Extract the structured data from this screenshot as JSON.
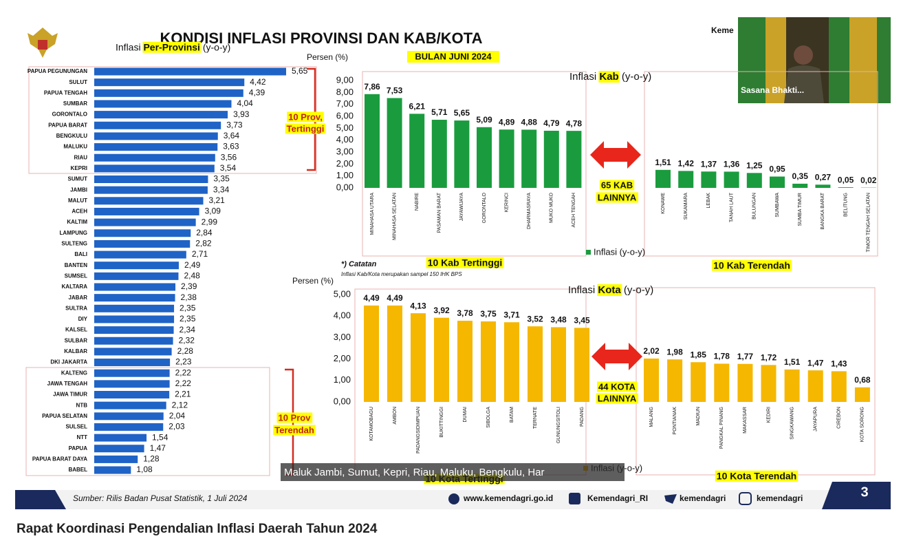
{
  "page": {
    "title": "KONDISI INFLASI PROVINSI DAN KAB/KOTA",
    "subtitle": "BULAN JUNI 2024",
    "corner_text": "Keme",
    "webcam_name": "Sasana Bhakti...",
    "note_title": "*) Catatan",
    "note_text": "Inflasi Kab/Kota merupakan sampel 150 IHK BPS",
    "source": "Sumber: Rilis Badan Pusat Statistik,  1 Juli 2024",
    "website": "www.kemendagri.go.id",
    "facebook": "Kemendagri_RI",
    "twitter": "kemendagri",
    "instagram": "kemendagri",
    "slide_number": "3",
    "caption": "Maluk Jambi, Sumut, Kepri, Riau, Maluku, Bengkulu, Har",
    "meeting_title": "Rapat Koordinasi Pengendalian Inflasi Daerah Tahun 2024"
  },
  "chart_data": [
    {
      "type": "hbar",
      "title_parts": [
        "Inflasi ",
        "Per-Provinsi",
        " (y-o-y)"
      ],
      "categories": [
        "PAPUA PEGUNUNGAN",
        "SULUT",
        "PAPUA TENGAH",
        "SUMBAR",
        "GORONTALO",
        "PAPUA BARAT",
        "BENGKULU",
        "MALUKU",
        "RIAU",
        "KEPRI",
        "SUMUT",
        "JAMBI",
        "MALUT",
        "ACEH",
        "KALTIM",
        "LAMPUNG",
        "SULTENG",
        "BALI",
        "BANTEN",
        "SUMSEL",
        "KALTARA",
        "JABAR",
        "SULTRA",
        "DIY",
        "KALSEL",
        "SULBAR",
        "KALBAR",
        "DKI JAKARTA",
        "KALTENG",
        "JAWA TENGAH",
        "JAWA TIMUR",
        "NTB",
        "PAPUA SELATAN",
        "SULSEL",
        "NTT",
        "PAPUA",
        "PAPUA BARAT DAYA",
        "BABEL"
      ],
      "values": [
        5.65,
        4.42,
        4.39,
        4.04,
        3.93,
        3.73,
        3.64,
        3.63,
        3.56,
        3.54,
        3.35,
        3.34,
        3.21,
        3.09,
        2.99,
        2.84,
        2.82,
        2.71,
        2.49,
        2.48,
        2.39,
        2.38,
        2.35,
        2.35,
        2.34,
        2.32,
        2.28,
        2.23,
        2.22,
        2.22,
        2.21,
        2.12,
        2.04,
        2.03,
        1.54,
        1.47,
        1.28,
        1.08
      ],
      "value_labels": [
        "5,65",
        "4,42",
        "4,39",
        "4,04",
        "3,93",
        "3,73",
        "3,64",
        "3,63",
        "3,56",
        "3,54",
        "3,35",
        "3,34",
        "3,21",
        "3,09",
        "2,99",
        "2,84",
        "2,82",
        "2,71",
        "2,49",
        "2,48",
        "2,39",
        "2,38",
        "2,35",
        "2,35",
        "2,34",
        "2,32",
        "2,28",
        "2,23",
        "2,22",
        "2,22",
        "2,21",
        "2,12",
        "2,04",
        "2,03",
        "1,54",
        "1,47",
        "1,28",
        "1,08"
      ],
      "color": "#1f63c6",
      "annotations": [
        [
          "10 Prov,",
          "Tertinggi"
        ],
        [
          "10 Prov",
          "Terendah"
        ]
      ]
    },
    {
      "type": "bar",
      "title_parts": [
        "Inflasi ",
        "Kab",
        " (y-o-y)"
      ],
      "y_label": "Persen (%)",
      "categories": [
        "MINAHASA UTARA",
        "MINAHASA SELATAN",
        "NABIRE",
        "PASAMAN BARAT",
        "JAYAWIJAYA",
        "GORONTALO",
        "KERINCI",
        "DHARMASRAYA",
        "MUKO MUKO",
        "ACEH TENGAH",
        "KONAWE",
        "SUKAMARA",
        "LEBAK",
        "TANAH LAUT",
        "BULUNGAN",
        "SUMBAWA",
        "SUMBA TIMUR",
        "BANGKA BARAT",
        "BELITUNG",
        "TIMOR TENGAH SELATAN"
      ],
      "series": [
        {
          "name": "Inflasi (y-o-y)",
          "color": "#1a9c3e",
          "values": [
            7.86,
            7.53,
            6.21,
            5.71,
            5.65,
            5.09,
            4.89,
            4.88,
            4.79,
            4.78,
            1.51,
            1.42,
            1.37,
            1.36,
            1.25,
            0.95,
            0.35,
            0.27,
            0.05,
            0.02
          ],
          "value_labels": [
            "7,86",
            "7,53",
            "6,21",
            "5,71",
            "5,65",
            "5,09",
            "4,89",
            "4,88",
            "4,79",
            "4,78",
            "1,51",
            "1,42",
            "1,37",
            "1,36",
            "1,25",
            "0,95",
            "0,35",
            "0,27",
            "0,05",
            "0,02"
          ]
        }
      ],
      "ylim": [
        0,
        9
      ],
      "yticks": [
        {
          "value": 0,
          "label": "0,00"
        },
        {
          "value": 1,
          "label": "1,00"
        },
        {
          "value": 2,
          "label": "2,00"
        },
        {
          "value": 3,
          "label": "3,00"
        },
        {
          "value": 4,
          "label": "4,00"
        },
        {
          "value": 5,
          "label": "5,00"
        },
        {
          "value": 6,
          "label": "6,00"
        },
        {
          "value": 7,
          "label": "7,00"
        },
        {
          "value": 8,
          "label": "8,00"
        },
        {
          "value": 9,
          "label": "9,00"
        }
      ],
      "group_labels": [
        "10 Kab Tertinggi",
        "10 Kab Terendah"
      ],
      "middle_label": [
        "65 KAB",
        "LAINNYA"
      ]
    },
    {
      "type": "bar",
      "title_parts": [
        "Inflasi ",
        "Kota",
        " (y-o-y)"
      ],
      "y_label": "Persen (%)",
      "categories": [
        "KOTAMOBAGU",
        "AMBON",
        "PADANGSIDIMPUAN",
        "BUKITTINGGI",
        "DUMAI",
        "SIBOLGA",
        "BATAM",
        "TERNATE",
        "GUNUNGSITOLI",
        "PADANG",
        "MALANG",
        "PONTIANAK",
        "MADIUN",
        "PANGKAL PINANG",
        "MAKASSAR",
        "KEDIRI",
        "SINGKAWANG",
        "JAYAPURA",
        "CIREBON",
        "KOTA SORONG"
      ],
      "series": [
        {
          "name": "Inflasi (y-o-y)",
          "color": "#f5b700",
          "values": [
            4.49,
            4.49,
            4.13,
            3.92,
            3.78,
            3.75,
            3.71,
            3.52,
            3.48,
            3.45,
            2.02,
            1.98,
            1.85,
            1.78,
            1.77,
            1.72,
            1.51,
            1.47,
            1.43,
            0.68
          ],
          "value_labels": [
            "4,49",
            "4,49",
            "4,13",
            "3,92",
            "3,78",
            "3,75",
            "3,71",
            "3,52",
            "3,48",
            "3,45",
            "2,02",
            "1,98",
            "1,85",
            "1,78",
            "1,77",
            "1,72",
            "1,51",
            "1,47",
            "1,43",
            "0,68"
          ]
        }
      ],
      "ylim": [
        0,
        5
      ],
      "yticks": [
        {
          "value": 0,
          "label": "0,00"
        },
        {
          "value": 1,
          "label": "1,00"
        },
        {
          "value": 2,
          "label": "2,00"
        },
        {
          "value": 3,
          "label": "3,00"
        },
        {
          "value": 4,
          "label": "4,00"
        },
        {
          "value": 5,
          "label": "5,00"
        }
      ],
      "group_labels": [
        "10 Kota Tertinggi",
        "10 Kota Terendah"
      ],
      "middle_label": [
        "44 KOTA",
        "LAINNYA"
      ]
    }
  ]
}
